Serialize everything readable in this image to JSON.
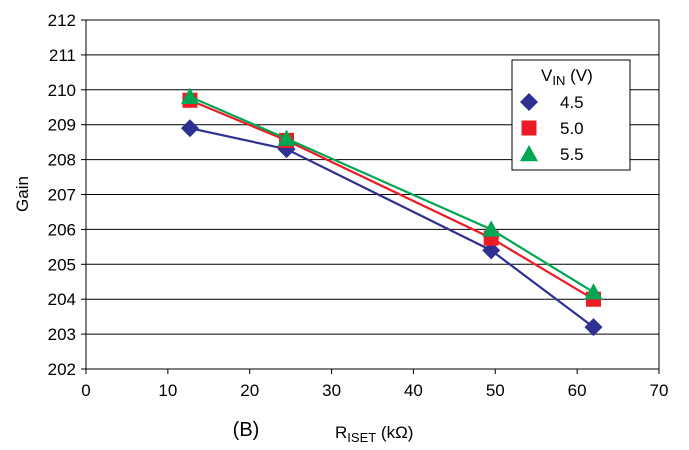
{
  "chart_data": {
    "type": "line",
    "panel_label": "(B)",
    "xlabel": {
      "main": "R",
      "sub": "ISET",
      "unit": " (kΩ)"
    },
    "ylabel": "Gain",
    "xlim": [
      0,
      70
    ],
    "ylim": [
      202,
      212
    ],
    "x_ticks": [
      "0",
      "10",
      "20",
      "30",
      "40",
      "50",
      "60",
      "70"
    ],
    "y_ticks": [
      "202",
      "203",
      "204",
      "205",
      "206",
      "207",
      "208",
      "209",
      "210",
      "211",
      "212"
    ],
    "grid": "horizontal",
    "legend": {
      "placement": "top-right",
      "title_main": "V",
      "title_sub": "IN",
      "title_unit": " (V)"
    },
    "x": [
      12.7,
      24.5,
      49.5,
      62.0
    ],
    "series": [
      {
        "name": "4.5",
        "marker": "diamond",
        "color": "#2E3192",
        "values": [
          208.9,
          208.3,
          205.4,
          203.2
        ]
      },
      {
        "name": "5.0",
        "marker": "square",
        "color": "#ED1C24",
        "values": [
          209.7,
          208.55,
          205.75,
          204.0
        ]
      },
      {
        "name": "5.5",
        "marker": "triangle",
        "color": "#00A651",
        "values": [
          209.8,
          208.6,
          206.0,
          204.2
        ]
      }
    ]
  }
}
